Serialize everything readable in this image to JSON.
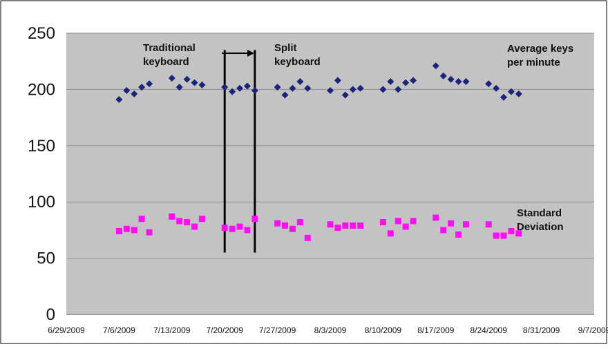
{
  "chart_data": {
    "type": "scatter",
    "title": "",
    "xlabel": "",
    "ylabel": "",
    "x_axis": {
      "tick_labels": [
        "6/29/2009",
        "7/6/2009",
        "7/13/2009",
        "7/20/2009",
        "7/27/2009",
        "8/3/2009",
        "8/10/2009",
        "8/17/2009",
        "8/24/2009",
        "8/31/2009",
        "9/7/2009"
      ],
      "range": [
        "6/29/2009",
        "9/7/2009"
      ]
    },
    "y_axis": {
      "tick_labels": [
        "0",
        "50",
        "100",
        "150",
        "200",
        "250"
      ],
      "range": [
        0,
        250
      ],
      "gridlines": true
    },
    "annotations": {
      "traditional": [
        "Traditional",
        "keyboard"
      ],
      "split": [
        "Split",
        "keyboard"
      ],
      "avg_label": [
        "Average keys",
        "per minute"
      ],
      "std_label": [
        "Standard",
        "Deviation"
      ],
      "arrow": "right-arrow"
    },
    "vertical_lines": [
      {
        "x": "7/20/2009",
        "y_from": 55,
        "y_to": 235
      },
      {
        "x": "7/24/2009",
        "y_from": 55,
        "y_to": 235
      }
    ],
    "colors": {
      "plot_bg": "#c3c3c3",
      "grid": "#8f8f8f",
      "avg": "#1c237a",
      "std": "#ff10f0",
      "vline": "#000000"
    },
    "series": [
      {
        "name": "Average keys per minute",
        "marker": "diamond",
        "points": [
          [
            "7/6/2009",
            191
          ],
          [
            "7/7/2009",
            199
          ],
          [
            "7/8/2009",
            196
          ],
          [
            "7/9/2009",
            202
          ],
          [
            "7/10/2009",
            205
          ],
          [
            "7/13/2009",
            210
          ],
          [
            "7/14/2009",
            202
          ],
          [
            "7/15/2009",
            209
          ],
          [
            "7/16/2009",
            206
          ],
          [
            "7/17/2009",
            204
          ],
          [
            "7/20/2009",
            202
          ],
          [
            "7/21/2009",
            198
          ],
          [
            "7/22/2009",
            201
          ],
          [
            "7/23/2009",
            203
          ],
          [
            "7/24/2009",
            199
          ],
          [
            "7/27/2009",
            202
          ],
          [
            "7/28/2009",
            195
          ],
          [
            "7/29/2009",
            201
          ],
          [
            "7/30/2009",
            207
          ],
          [
            "7/31/2009",
            201
          ],
          [
            "8/3/2009",
            199
          ],
          [
            "8/4/2009",
            208
          ],
          [
            "8/5/2009",
            195
          ],
          [
            "8/6/2009",
            200
          ],
          [
            "8/7/2009",
            201
          ],
          [
            "8/10/2009",
            200
          ],
          [
            "8/11/2009",
            207
          ],
          [
            "8/12/2009",
            200
          ],
          [
            "8/13/2009",
            206
          ],
          [
            "8/14/2009",
            208
          ],
          [
            "8/17/2009",
            221
          ],
          [
            "8/18/2009",
            212
          ],
          [
            "8/19/2009",
            209
          ],
          [
            "8/20/2009",
            207
          ],
          [
            "8/21/2009",
            207
          ],
          [
            "8/24/2009",
            205
          ],
          [
            "8/25/2009",
            201
          ],
          [
            "8/26/2009",
            193
          ],
          [
            "8/27/2009",
            198
          ],
          [
            "8/28/2009",
            196
          ]
        ]
      },
      {
        "name": "Standard Deviation",
        "marker": "square",
        "points": [
          [
            "7/6/2009",
            74
          ],
          [
            "7/7/2009",
            76
          ],
          [
            "7/8/2009",
            75
          ],
          [
            "7/9/2009",
            85
          ],
          [
            "7/10/2009",
            73
          ],
          [
            "7/13/2009",
            87
          ],
          [
            "7/14/2009",
            83
          ],
          [
            "7/15/2009",
            82
          ],
          [
            "7/16/2009",
            78
          ],
          [
            "7/17/2009",
            85
          ],
          [
            "7/20/2009",
            77
          ],
          [
            "7/21/2009",
            76
          ],
          [
            "7/22/2009",
            78
          ],
          [
            "7/23/2009",
            75
          ],
          [
            "7/24/2009",
            85
          ],
          [
            "7/27/2009",
            81
          ],
          [
            "7/28/2009",
            79
          ],
          [
            "7/29/2009",
            76
          ],
          [
            "7/30/2009",
            82
          ],
          [
            "7/31/2009",
            68
          ],
          [
            "8/3/2009",
            80
          ],
          [
            "8/4/2009",
            77
          ],
          [
            "8/5/2009",
            79
          ],
          [
            "8/6/2009",
            79
          ],
          [
            "8/7/2009",
            79
          ],
          [
            "8/10/2009",
            82
          ],
          [
            "8/11/2009",
            72
          ],
          [
            "8/12/2009",
            83
          ],
          [
            "8/13/2009",
            78
          ],
          [
            "8/14/2009",
            83
          ],
          [
            "8/17/2009",
            86
          ],
          [
            "8/18/2009",
            75
          ],
          [
            "8/19/2009",
            81
          ],
          [
            "8/20/2009",
            71
          ],
          [
            "8/21/2009",
            80
          ],
          [
            "8/24/2009",
            80
          ],
          [
            "8/25/2009",
            70
          ],
          [
            "8/26/2009",
            70
          ],
          [
            "8/27/2009",
            74
          ],
          [
            "8/28/2009",
            72
          ]
        ]
      }
    ]
  }
}
